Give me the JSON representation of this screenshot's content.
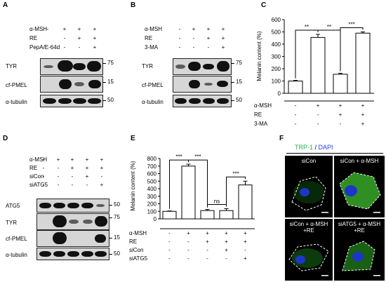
{
  "panels": {
    "A": {
      "letter": "A",
      "conditions": [
        {
          "label": "α-MSH",
          "marks": [
            "-",
            "+",
            "+",
            "+"
          ]
        },
        {
          "label": "RE",
          "marks": [
            "",
            "-",
            "+",
            "+"
          ]
        },
        {
          "label": "PepA/E-64d",
          "marks": [
            "",
            "-",
            "-",
            "+"
          ]
        }
      ],
      "blots": [
        {
          "label": "TYR",
          "mw": "75"
        },
        {
          "label": "cf-PMEL",
          "mw": "15"
        },
        {
          "label": "α-tubulin",
          "mw": "50"
        }
      ]
    },
    "B": {
      "letter": "B",
      "conditions": [
        {
          "label": "α-MSH",
          "marks": [
            "-",
            "+",
            "+",
            "+"
          ]
        },
        {
          "label": "RE",
          "marks": [
            "-",
            "-",
            "+",
            "+"
          ]
        },
        {
          "label": "3-MA",
          "marks": [
            "-",
            "-",
            "-",
            "+"
          ]
        }
      ],
      "blots": [
        {
          "label": "TYR",
          "mw": "75"
        },
        {
          "label": "cf-PMEL",
          "mw": "15"
        },
        {
          "label": "α-tubulin",
          "mw": "50"
        }
      ]
    },
    "D": {
      "letter": "D",
      "conditions": [
        {
          "label": "α-MSH",
          "marks": [
            "-",
            "+",
            "+",
            "+",
            "+"
          ]
        },
        {
          "label": "RE",
          "marks": [
            "-",
            "-",
            "+",
            "+",
            "+"
          ]
        },
        {
          "label": "siCon",
          "marks": [
            "-",
            "-",
            "-",
            "+",
            "-"
          ]
        },
        {
          "label": "siATG5",
          "marks": [
            "-",
            "-",
            "-",
            "-",
            "+"
          ]
        }
      ],
      "blots": [
        {
          "label": "ATG5",
          "mw": "50"
        },
        {
          "label": "TYR",
          "mw": "75"
        },
        {
          "label": "cf-PMEL",
          "mw": "15"
        },
        {
          "label": "α-tubulin",
          "mw": "50"
        }
      ]
    },
    "F": {
      "letter": "F",
      "title_green": "TRP-1",
      "title_sep": " / ",
      "title_blue": "DAPI",
      "cells": [
        "siCon",
        "siCon + α-MSH",
        "siCon + α-MSH\n+RE",
        "siATG5 + α-MSH\n+RE"
      ]
    }
  },
  "chart_data": [
    {
      "panel": "C",
      "type": "bar",
      "ylabel": "Melanin content (%)",
      "ylim": [
        0,
        600
      ],
      "yticks": [
        0,
        100,
        200,
        300,
        400,
        500,
        600
      ],
      "values": [
        100,
        455,
        155,
        490
      ],
      "errors": [
        5,
        25,
        8,
        10
      ],
      "conditions": [
        {
          "label": "α-MSH",
          "marks": [
            "-",
            "+",
            "+",
            "+"
          ]
        },
        {
          "label": "RE",
          "marks": [
            "-",
            "-",
            "+",
            "+"
          ]
        },
        {
          "label": "3-MA",
          "marks": [
            "-",
            "-",
            "-",
            "+"
          ]
        }
      ],
      "significance": [
        {
          "from": 0,
          "to": 1,
          "label": "**"
        },
        {
          "from": 1,
          "to": 2,
          "label": "**"
        },
        {
          "from": 2,
          "to": 3,
          "label": "***"
        }
      ]
    },
    {
      "panel": "E",
      "type": "bar",
      "ylabel": "Melanin content (%)",
      "ylim": [
        0,
        800
      ],
      "yticks": [
        0,
        100,
        200,
        300,
        400,
        500,
        600,
        700,
        800
      ],
      "values": [
        100,
        700,
        110,
        110,
        450
      ],
      "errors": [
        5,
        25,
        15,
        25,
        50
      ],
      "conditions": [
        {
          "label": "α-MSH",
          "marks": [
            "-",
            "+",
            "+",
            "+",
            "+"
          ]
        },
        {
          "label": "RE",
          "marks": [
            "-",
            "-",
            "+",
            "+",
            "+"
          ]
        },
        {
          "label": "siCon",
          "marks": [
            "-",
            "-",
            "-",
            "+",
            "-"
          ]
        },
        {
          "label": "siATG5",
          "marks": [
            "-",
            "-",
            "-",
            "-",
            "+"
          ]
        }
      ],
      "significance": [
        {
          "from": 0,
          "to": 1,
          "label": "***"
        },
        {
          "from": 1,
          "to": 2,
          "label": "***"
        },
        {
          "from": 2,
          "to": 3,
          "label": "ns"
        },
        {
          "from": 3,
          "to": 4,
          "label": "***"
        }
      ]
    }
  ]
}
